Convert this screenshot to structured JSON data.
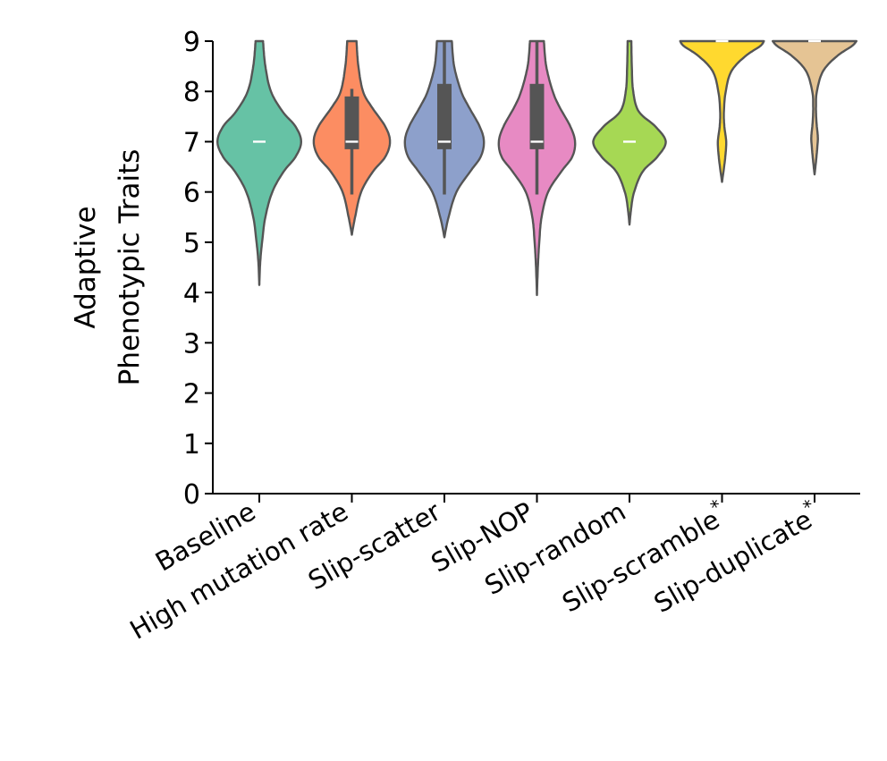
{
  "chart_data": {
    "type": "violin",
    "ylabel_lines": [
      "Adaptive",
      "Phenotypic Traits"
    ],
    "ylim": [
      0,
      9
    ],
    "yticks": [
      "0",
      "1",
      "2",
      "3",
      "4",
      "5",
      "6",
      "7",
      "8",
      "9"
    ],
    "grid": false,
    "categories": [
      "Baseline",
      "High mutation rate",
      "Slip-scatter",
      "Slip-NOP",
      "Slip-random",
      "Slip-scramble*",
      "Slip-duplicate*"
    ],
    "colors": [
      "#66c2a5",
      "#fc8d62",
      "#8da0cb",
      "#e78ac3",
      "#a6d854",
      "#ffd92f",
      "#e5c494"
    ],
    "series": [
      {
        "min": 4.15,
        "q1": 7.0,
        "median": 7.0,
        "q3": 7.0,
        "whisker_low": 7.0,
        "whisker_high": 7.0,
        "density": [
          [
            4.15,
            0.0
          ],
          [
            4.6,
            0.02
          ],
          [
            5.0,
            0.06
          ],
          [
            5.5,
            0.13
          ],
          [
            6.0,
            0.28
          ],
          [
            6.4,
            0.52
          ],
          [
            6.7,
            0.78
          ],
          [
            7.0,
            0.9
          ],
          [
            7.3,
            0.78
          ],
          [
            7.6,
            0.5
          ],
          [
            8.0,
            0.25
          ],
          [
            8.5,
            0.13
          ],
          [
            9.0,
            0.08
          ]
        ]
      },
      {
        "min": 5.15,
        "q1": 6.85,
        "median": 7.0,
        "q3": 7.9,
        "whisker_low": 5.95,
        "whisker_high": 8.05,
        "density": [
          [
            5.15,
            0.0
          ],
          [
            5.5,
            0.07
          ],
          [
            6.0,
            0.2
          ],
          [
            6.4,
            0.45
          ],
          [
            6.7,
            0.72
          ],
          [
            7.0,
            0.82
          ],
          [
            7.3,
            0.72
          ],
          [
            7.7,
            0.42
          ],
          [
            8.0,
            0.24
          ],
          [
            8.5,
            0.14
          ],
          [
            9.0,
            0.1
          ]
        ]
      },
      {
        "min": 5.1,
        "q1": 6.85,
        "median": 7.0,
        "q3": 8.15,
        "whisker_low": 5.95,
        "whisker_high": 9.0,
        "density": [
          [
            5.1,
            0.0
          ],
          [
            5.5,
            0.09
          ],
          [
            6.0,
            0.26
          ],
          [
            6.4,
            0.55
          ],
          [
            6.7,
            0.78
          ],
          [
            7.0,
            0.85
          ],
          [
            7.3,
            0.76
          ],
          [
            7.7,
            0.52
          ],
          [
            8.0,
            0.36
          ],
          [
            8.5,
            0.21
          ],
          [
            9.0,
            0.16
          ]
        ]
      },
      {
        "min": 3.95,
        "q1": 6.85,
        "median": 7.0,
        "q3": 8.15,
        "whisker_low": 5.95,
        "whisker_high": 9.0,
        "density": [
          [
            3.95,
            0.0
          ],
          [
            4.5,
            0.02
          ],
          [
            5.0,
            0.05
          ],
          [
            5.5,
            0.1
          ],
          [
            6.0,
            0.24
          ],
          [
            6.4,
            0.52
          ],
          [
            6.7,
            0.76
          ],
          [
            7.0,
            0.82
          ],
          [
            7.3,
            0.72
          ],
          [
            7.7,
            0.48
          ],
          [
            8.0,
            0.34
          ],
          [
            8.5,
            0.2
          ],
          [
            9.0,
            0.15
          ]
        ]
      },
      {
        "min": 5.35,
        "q1": 7.0,
        "median": 7.0,
        "q3": 7.0,
        "whisker_low": 7.0,
        "whisker_high": 7.0,
        "density": [
          [
            5.35,
            0.0
          ],
          [
            5.7,
            0.04
          ],
          [
            6.0,
            0.1
          ],
          [
            6.4,
            0.28
          ],
          [
            6.7,
            0.6
          ],
          [
            7.0,
            0.78
          ],
          [
            7.3,
            0.56
          ],
          [
            7.6,
            0.2
          ],
          [
            8.0,
            0.08
          ],
          [
            8.5,
            0.05
          ],
          [
            9.0,
            0.04
          ]
        ]
      },
      {
        "min": 6.2,
        "q1": 9.0,
        "median": 9.0,
        "q3": 9.0,
        "whisker_low": 9.0,
        "whisker_high": 9.0,
        "density": [
          [
            6.2,
            0.0
          ],
          [
            6.4,
            0.03
          ],
          [
            6.7,
            0.07
          ],
          [
            7.0,
            0.09
          ],
          [
            7.3,
            0.05
          ],
          [
            7.6,
            0.04
          ],
          [
            8.0,
            0.08
          ],
          [
            8.4,
            0.2
          ],
          [
            8.7,
            0.5
          ],
          [
            8.9,
            0.82
          ],
          [
            9.0,
            0.9
          ]
        ]
      },
      {
        "min": 6.35,
        "q1": 9.0,
        "median": 9.0,
        "q3": 9.0,
        "whisker_low": 9.0,
        "whisker_high": 9.0,
        "density": [
          [
            6.35,
            0.0
          ],
          [
            6.6,
            0.03
          ],
          [
            6.9,
            0.06
          ],
          [
            7.1,
            0.07
          ],
          [
            7.4,
            0.04
          ],
          [
            7.7,
            0.03
          ],
          [
            8.0,
            0.05
          ],
          [
            8.4,
            0.18
          ],
          [
            8.7,
            0.48
          ],
          [
            8.9,
            0.8
          ],
          [
            9.0,
            0.9
          ]
        ]
      }
    ]
  }
}
